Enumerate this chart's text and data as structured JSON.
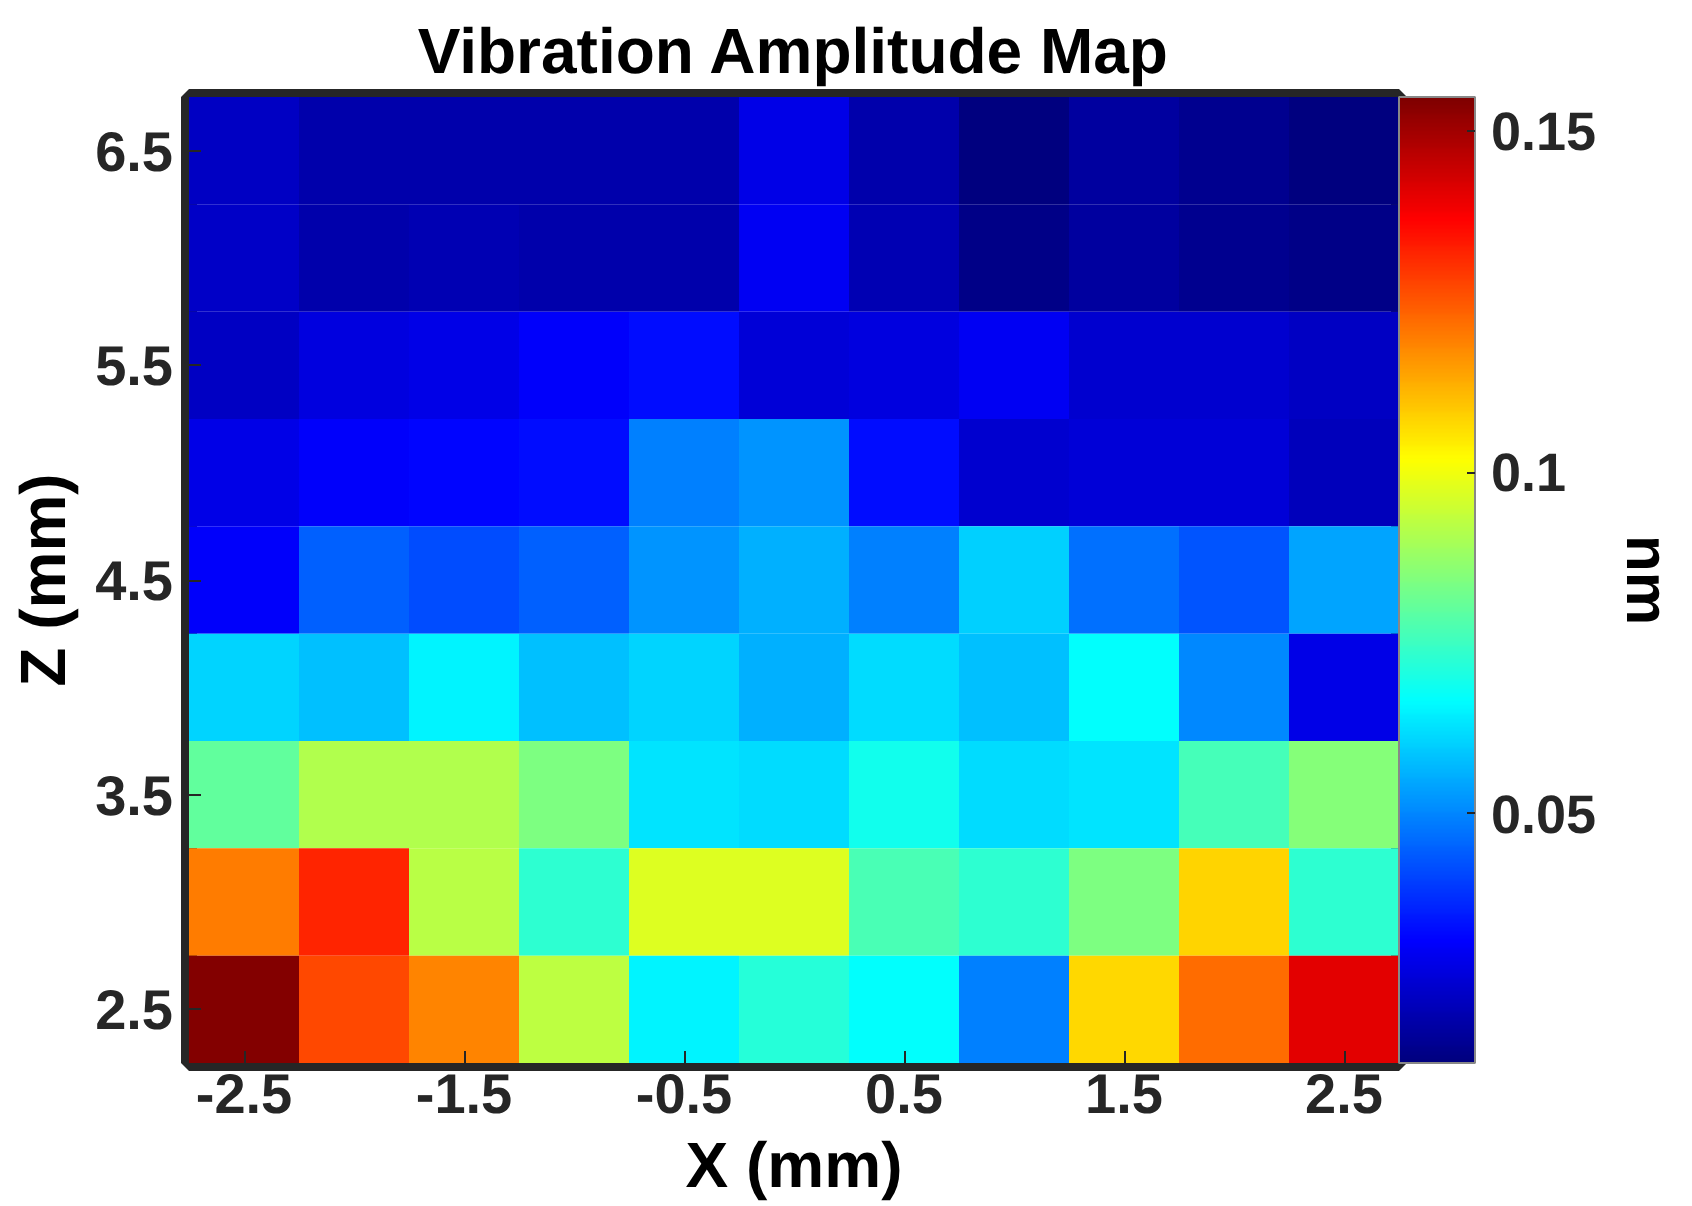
{
  "chart_data": {
    "type": "heatmap",
    "title": "Vibration Amplitude Map",
    "xlabel": "X (mm)",
    "ylabel": "Z (mm)",
    "clabel": "nm",
    "categories": [
      "-2.5",
      null,
      "-1.5",
      null,
      "-0.5",
      null,
      "0.5",
      null,
      "1.5",
      null,
      "2.5"
    ],
    "y_categories": [
      "6.5",
      null,
      "5.5",
      null,
      "4.5",
      null,
      "3.5",
      null,
      "2.5"
    ],
    "cells": [
      [
        0.023,
        0.02,
        0.02,
        0.02,
        0.02,
        0.028,
        0.02,
        0.014,
        0.018,
        0.016,
        0.014
      ],
      [
        0.024,
        0.02,
        0.021,
        0.02,
        0.02,
        0.03,
        0.021,
        0.015,
        0.018,
        0.016,
        0.015
      ],
      [
        0.023,
        0.027,
        0.028,
        0.031,
        0.033,
        0.026,
        0.027,
        0.03,
        0.025,
        0.025,
        0.023
      ],
      [
        0.028,
        0.031,
        0.032,
        0.033,
        0.049,
        0.052,
        0.033,
        0.025,
        0.026,
        0.026,
        0.022
      ],
      [
        0.031,
        0.045,
        0.042,
        0.045,
        0.052,
        0.056,
        0.049,
        0.06,
        0.047,
        0.043,
        0.054
      ],
      [
        0.061,
        0.058,
        0.065,
        0.058,
        0.061,
        0.056,
        0.062,
        0.058,
        0.067,
        0.05,
        0.028
      ],
      [
        0.08,
        0.091,
        0.091,
        0.084,
        0.063,
        0.062,
        0.069,
        0.062,
        0.063,
        0.076,
        0.085
      ],
      [
        0.12,
        0.132,
        0.092,
        0.073,
        0.097,
        0.097,
        0.077,
        0.073,
        0.084,
        0.108,
        0.073
      ],
      [
        0.154,
        0.127,
        0.119,
        0.093,
        0.065,
        0.072,
        0.067,
        0.049,
        0.107,
        0.122,
        0.141
      ]
    ],
    "clim": [
      0.0135,
      0.155
    ],
    "cticks": [
      0.05,
      0.1,
      0.15
    ]
  }
}
